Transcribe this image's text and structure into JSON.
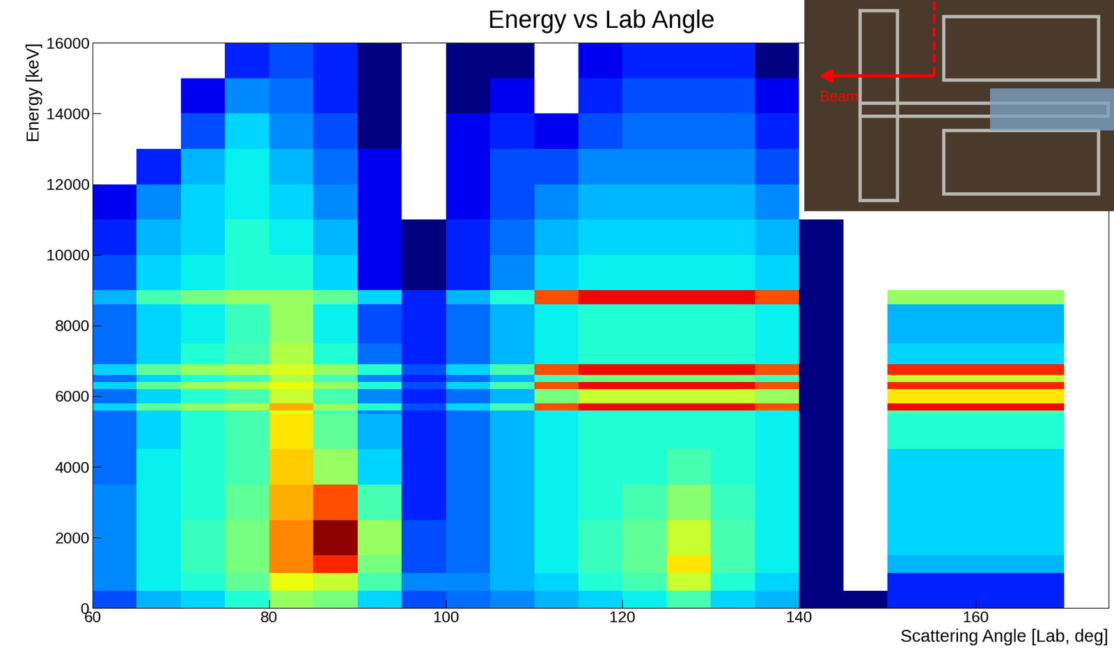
{
  "chart_data": {
    "type": "heatmap",
    "title": "Energy vs Lab Angle",
    "x_label": "Scattering Angle [Lab, deg]",
    "y_label": "Energy [keV]",
    "xlim": [
      60,
      175
    ],
    "ylim": [
      0,
      16000
    ],
    "xticks": [
      60,
      80,
      100,
      120,
      140,
      160
    ],
    "yticks": [
      0,
      2000,
      4000,
      6000,
      8000,
      10000,
      12000,
      14000,
      16000
    ],
    "grid": false,
    "x_bins": [
      60,
      65,
      70,
      75,
      80,
      85,
      90,
      95,
      100,
      105,
      110,
      115,
      120,
      125,
      130,
      135,
      140,
      145,
      150,
      155,
      160,
      165,
      170,
      175
    ],
    "y_bins": [
      0,
      500,
      1000,
      1500,
      2500,
      3500,
      4500,
      5500,
      5600,
      5800,
      6200,
      6400,
      6600,
      6900,
      7500,
      8600,
      9000,
      10000,
      11000,
      12000,
      13000,
      14000,
      15000,
      16000
    ],
    "color_range": [
      1,
      1000
    ],
    "counts": [
      [
        4,
        8,
        10,
        15,
        40,
        30,
        10,
        4,
        5,
        6,
        8,
        10,
        12,
        20,
        10,
        8,
        1,
        1,
        3,
        3,
        3,
        3,
        0
      ],
      [
        6,
        12,
        15,
        25,
        80,
        60,
        20,
        6,
        6,
        8,
        10,
        15,
        20,
        60,
        15,
        10,
        1,
        0,
        3,
        3,
        3,
        3,
        0
      ],
      [
        6,
        12,
        18,
        30,
        200,
        400,
        30,
        4,
        5,
        8,
        12,
        18,
        25,
        100,
        20,
        12,
        1,
        0,
        8,
        8,
        8,
        8,
        0
      ],
      [
        6,
        12,
        18,
        30,
        200,
        900,
        40,
        4,
        5,
        8,
        12,
        18,
        25,
        60,
        20,
        12,
        1,
        0,
        10,
        10,
        10,
        10,
        0
      ],
      [
        6,
        12,
        15,
        25,
        150,
        300,
        20,
        3,
        5,
        8,
        12,
        15,
        20,
        35,
        18,
        12,
        1,
        0,
        10,
        10,
        10,
        10,
        0
      ],
      [
        5,
        12,
        15,
        20,
        120,
        40,
        10,
        3,
        5,
        8,
        12,
        15,
        15,
        20,
        15,
        12,
        1,
        0,
        10,
        10,
        10,
        10,
        0
      ],
      [
        5,
        10,
        15,
        20,
        100,
        25,
        8,
        3,
        5,
        8,
        12,
        15,
        15,
        15,
        15,
        12,
        1,
        0,
        15,
        15,
        15,
        15,
        0
      ],
      [
        5,
        10,
        15,
        20,
        80,
        20,
        6,
        3,
        5,
        8,
        12,
        15,
        15,
        15,
        15,
        12,
        1,
        0,
        20,
        20,
        20,
        20,
        0
      ],
      [
        10,
        25,
        40,
        50,
        150,
        40,
        15,
        4,
        10,
        20,
        300,
        500,
        500,
        500,
        500,
        300,
        1,
        0,
        500,
        500,
        500,
        500,
        0
      ],
      [
        5,
        10,
        15,
        20,
        60,
        20,
        6,
        3,
        5,
        8,
        30,
        60,
        60,
        60,
        60,
        40,
        1,
        0,
        100,
        100,
        100,
        100,
        0
      ],
      [
        10,
        25,
        40,
        50,
        80,
        40,
        15,
        4,
        10,
        20,
        300,
        500,
        500,
        500,
        500,
        300,
        1,
        0,
        400,
        400,
        400,
        400,
        0
      ],
      [
        5,
        10,
        15,
        20,
        50,
        20,
        6,
        3,
        5,
        8,
        20,
        30,
        30,
        30,
        30,
        20,
        1,
        0,
        60,
        60,
        60,
        60,
        0
      ],
      [
        10,
        25,
        40,
        50,
        70,
        40,
        15,
        4,
        10,
        20,
        300,
        500,
        500,
        500,
        500,
        300,
        1,
        0,
        400,
        400,
        400,
        400,
        0
      ],
      [
        5,
        10,
        15,
        20,
        50,
        15,
        5,
        3,
        5,
        8,
        12,
        15,
        15,
        15,
        15,
        12,
        1,
        0,
        10,
        10,
        10,
        10,
        0
      ],
      [
        5,
        10,
        12,
        18,
        40,
        12,
        4,
        3,
        5,
        8,
        12,
        15,
        15,
        15,
        15,
        12,
        1,
        0,
        8,
        8,
        8,
        8,
        0
      ],
      [
        8,
        20,
        30,
        40,
        40,
        25,
        10,
        3,
        8,
        15,
        300,
        500,
        500,
        500,
        500,
        300,
        1,
        0,
        40,
        40,
        40,
        40,
        0
      ],
      [
        4,
        10,
        12,
        15,
        15,
        10,
        2,
        1,
        3,
        6,
        10,
        12,
        12,
        12,
        12,
        10,
        1,
        0,
        0,
        0,
        0,
        0,
        0
      ],
      [
        3,
        8,
        10,
        15,
        12,
        8,
        2,
        1,
        3,
        5,
        8,
        10,
        10,
        10,
        10,
        8,
        1,
        0,
        0,
        0,
        0,
        0,
        0
      ],
      [
        2,
        6,
        10,
        12,
        10,
        6,
        2,
        0,
        2,
        4,
        6,
        8,
        8,
        8,
        8,
        6,
        0,
        0,
        0,
        0,
        0,
        0,
        0
      ],
      [
        0,
        3,
        8,
        12,
        8,
        5,
        2,
        0,
        2,
        4,
        4,
        6,
        6,
        6,
        6,
        4,
        0,
        0,
        0,
        0,
        0,
        0,
        0
      ],
      [
        0,
        0,
        4,
        10,
        6,
        4,
        1,
        0,
        2,
        3,
        2,
        4,
        5,
        5,
        5,
        3,
        0,
        0,
        0,
        0,
        0,
        0,
        0
      ],
      [
        0,
        0,
        2,
        6,
        5,
        3,
        1,
        0,
        1,
        2,
        0,
        3,
        4,
        4,
        4,
        2,
        0,
        0,
        0,
        0,
        0,
        0,
        0
      ],
      [
        0,
        0,
        0,
        3,
        4,
        3,
        1,
        0,
        1,
        1,
        0,
        2,
        3,
        3,
        3,
        1,
        0,
        0,
        0,
        0,
        0,
        0,
        0
      ]
    ],
    "inset": {
      "label": "Beam"
    }
  }
}
